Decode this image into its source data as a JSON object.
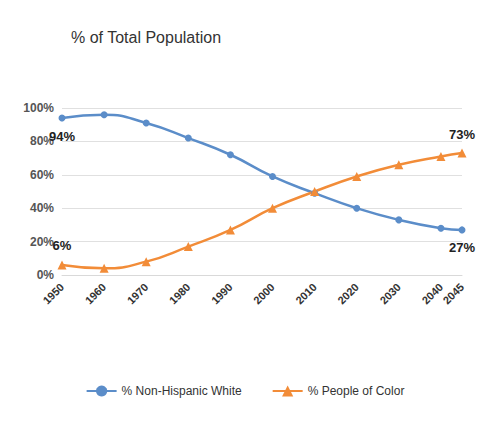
{
  "chart_data": {
    "type": "line",
    "title": "% of Total Population",
    "x": [
      1950,
      1960,
      1970,
      1980,
      1990,
      2000,
      2010,
      2020,
      2030,
      2040,
      2045
    ],
    "series": [
      {
        "name": "% Non-Hispanic White",
        "color": "#5b8dc9",
        "marker": "circle",
        "values": [
          94,
          96,
          91,
          82,
          72,
          59,
          49,
          40,
          33,
          28,
          27
        ]
      },
      {
        "name": "% People of Color",
        "color": "#f28c38",
        "marker": "triangle",
        "values": [
          6,
          4,
          8,
          17,
          27,
          40,
          50,
          59,
          66,
          71,
          73
        ]
      }
    ],
    "xlim": [
      1950,
      2045
    ],
    "xticks": [
      1950,
      1960,
      1970,
      1980,
      1990,
      2000,
      2010,
      2020,
      2030,
      2040,
      2045
    ],
    "ylim": [
      0,
      100
    ],
    "yticks": [
      {
        "value": 0,
        "label": "0%"
      },
      {
        "value": 20,
        "label": "20%"
      },
      {
        "value": 40,
        "label": "40%"
      },
      {
        "value": 60,
        "label": "60%"
      },
      {
        "value": 80,
        "label": "80%"
      },
      {
        "value": 100,
        "label": "100%"
      }
    ],
    "grid": true,
    "legend": "bottom",
    "annotations": [
      {
        "text": "94%",
        "x": 1950,
        "y": 94,
        "series": "% Non-Hispanic White"
      },
      {
        "text": "27%",
        "x": 2045,
        "y": 27,
        "series": "% Non-Hispanic White"
      },
      {
        "text": "6%",
        "x": 1950,
        "y": 6,
        "series": "% People of Color"
      },
      {
        "text": "73%",
        "x": 2045,
        "y": 73,
        "series": "% People of Color"
      }
    ]
  }
}
